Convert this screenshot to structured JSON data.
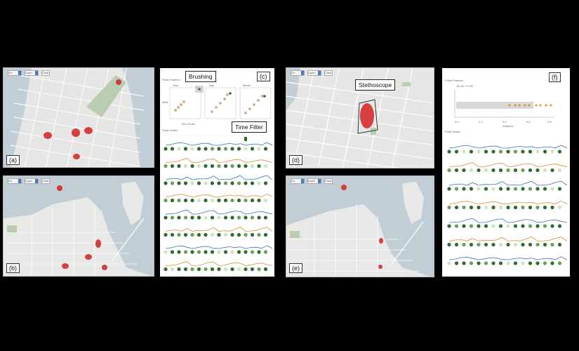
{
  "panels": {
    "a": {
      "label": "(a)",
      "controls": [
        "Go",
        "Layer",
        "Clear"
      ]
    },
    "b": {
      "label": "(b)",
      "controls": [
        "Go",
        "Layer",
        "Clear"
      ]
    },
    "c": {
      "label": "(c)",
      "section_title": "Pulse Explorer",
      "plot_titles": [
        "Hour",
        "Day",
        "Month"
      ],
      "xaxis": "Time Scale",
      "yaxis": "Beat",
      "section2_title": "Pulse Matrix",
      "tick_ymax": "1000"
    },
    "d": {
      "label": "(d)",
      "controls": [
        "Go",
        "Layer",
        "Clear"
      ]
    },
    "e": {
      "label": "(e)",
      "controls": [
        "Go",
        "Layer",
        "Clear"
      ]
    },
    "f": {
      "label": "(f)",
      "section_title": "Pulse Explorer",
      "row_label": "Jul 4th, 07:00",
      "xaxis": "Distance",
      "section2_title": "Pulse Matrix",
      "xticks": [
        "0.0",
        "0.2",
        "0.4",
        "0.6",
        "0.8"
      ],
      "tick_ymax": "1000"
    }
  },
  "callouts": {
    "brushing": "Brushing",
    "time_filter": "Time Filter",
    "stethoscope": "Stethoscope"
  },
  "colors": {
    "hotspot": "#d42222",
    "water": "#c2ced6",
    "park": "#b9cdb1",
    "blue_line": "#3b6fb7",
    "orange_line": "#e08a2e",
    "dot_dark": "#2f6b2f",
    "dot_mid": "#6c9e58",
    "dot_light": "#cfe3c0"
  }
}
